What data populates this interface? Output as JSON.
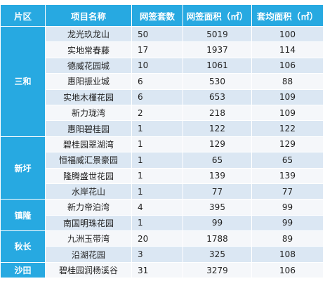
{
  "headers": [
    "片区",
    "项目名称",
    "网签套数",
    "网签面积（㎡）",
    "套均面积（㎡）"
  ],
  "groups": [
    {
      "region": "三和",
      "rows": [
        [
          "龙光玖龙山",
          "50",
          "5019",
          "100"
        ],
        [
          "实地常春藤",
          "17",
          "1937",
          "114"
        ],
        [
          "德威花园城",
          "10",
          "1061",
          "106"
        ],
        [
          "惠阳振业城",
          "6",
          "530",
          "88"
        ],
        [
          "实地木槿花园",
          "6",
          "653",
          "109"
        ],
        [
          "新力珑湾",
          "2",
          "218",
          "109"
        ],
        [
          "惠阳碧桂园",
          "1",
          "122",
          "122"
        ]
      ]
    },
    {
      "region": "新圩",
      "rows": [
        [
          "碧桂园翠湖湾",
          "1",
          "129",
          "129"
        ],
        [
          "恒福威汇景豪园",
          "1",
          "65",
          "65"
        ],
        [
          "隆腾盛世花园",
          "1",
          "139",
          "139"
        ],
        [
          "水岸花山",
          "1",
          "77",
          "77"
        ]
      ]
    },
    {
      "region": "镇隆",
      "rows": [
        [
          "新力帝泊湾",
          "4",
          "395",
          "99"
        ],
        [
          "南国明珠花园",
          "1",
          "99",
          "99"
        ]
      ]
    },
    {
      "region": "秋长",
      "rows": [
        [
          "九洲玉带湾",
          "20",
          "1788",
          "89"
        ],
        [
          "沿湖花园",
          "3",
          "325",
          "108"
        ]
      ]
    },
    {
      "region": "沙田",
      "rows": [
        [
          "碧桂园润杨溪谷",
          "31",
          "3279",
          "106"
        ]
      ]
    }
  ]
}
